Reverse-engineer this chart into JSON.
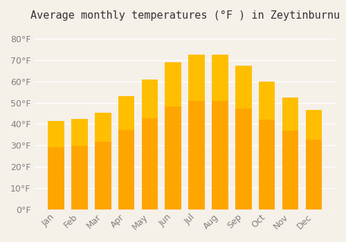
{
  "title": "Average monthly temperatures (°F ) in Zeytinburnu",
  "months": [
    "Jan",
    "Feb",
    "Mar",
    "Apr",
    "May",
    "Jun",
    "Jul",
    "Aug",
    "Sep",
    "Oct",
    "Nov",
    "Dec"
  ],
  "values": [
    41.5,
    42.5,
    45.5,
    53.0,
    61.0,
    69.0,
    72.5,
    72.5,
    67.5,
    60.0,
    52.5,
    46.5
  ],
  "bar_color_main": "#FFA500",
  "bar_color_gradient_top": "#FFD700",
  "bar_edge_color": "#FFA500",
  "bg_color": "#f5f0e8",
  "grid_color": "#ffffff",
  "yticks": [
    0,
    10,
    20,
    30,
    40,
    50,
    60,
    70,
    80
  ],
  "ylim": [
    0,
    85
  ],
  "title_fontsize": 11,
  "tick_fontsize": 9
}
